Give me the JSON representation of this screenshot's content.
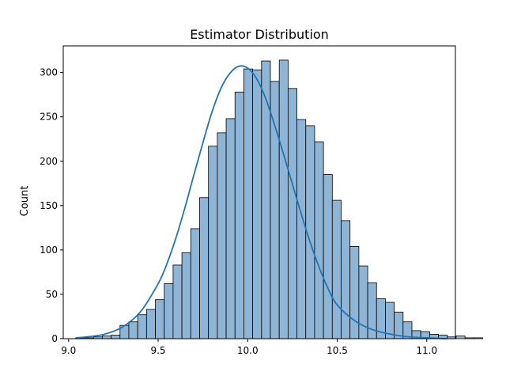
{
  "chart_data": {
    "type": "bar",
    "subtype": "histogram-with-kde",
    "title": "Estimator Distribution",
    "xlabel": "",
    "ylabel": "Count",
    "xlim": [
      8.97,
      11.16
    ],
    "ylim": [
      0,
      330
    ],
    "x_ticks": [
      9.0,
      9.5,
      10.0,
      10.5,
      11.0
    ],
    "x_tick_labels": [
      "9.0",
      "9.5",
      "10.0",
      "10.5",
      "11.0"
    ],
    "y_ticks": [
      0,
      50,
      100,
      150,
      200,
      250,
      300
    ],
    "y_tick_labels": [
      "0",
      "50",
      "100",
      "150",
      "200",
      "250",
      "300"
    ],
    "grid": false,
    "legend": "none",
    "bin_start": 9.04,
    "bin_width": 0.0494,
    "counts": [
      1,
      1,
      2,
      3,
      4,
      15,
      19,
      27,
      33,
      44,
      62,
      83,
      97,
      124,
      159,
      217,
      232,
      248,
      278,
      304,
      303,
      313,
      290,
      314,
      282,
      247,
      240,
      222,
      185,
      156,
      133,
      104,
      82,
      63,
      45,
      41,
      30,
      19,
      9,
      8,
      5,
      4,
      2,
      3,
      1,
      1
    ],
    "kde": {
      "x": [
        9.04,
        9.1,
        9.2,
        9.3,
        9.4,
        9.5,
        9.55,
        9.6,
        9.65,
        9.7,
        9.75,
        9.8,
        9.85,
        9.9,
        9.95,
        10.0,
        10.05,
        10.1,
        10.15,
        10.2,
        10.25,
        10.3,
        10.35,
        10.4,
        10.45,
        10.5,
        10.6,
        10.7,
        10.8,
        10.9,
        11.0,
        11.11
      ],
      "y": [
        1,
        2,
        5,
        13,
        30,
        62,
        85,
        114,
        148,
        185,
        221,
        255,
        282,
        299,
        307,
        305,
        293,
        271,
        241,
        208,
        174,
        140,
        108,
        80,
        56,
        38,
        20,
        10,
        5,
        2,
        1,
        0
      ]
    },
    "colors": {
      "bar_fill": "#8fb5d6",
      "bar_edge": "#000000",
      "kde_line": "#2174b5",
      "axes": "#000000"
    }
  }
}
